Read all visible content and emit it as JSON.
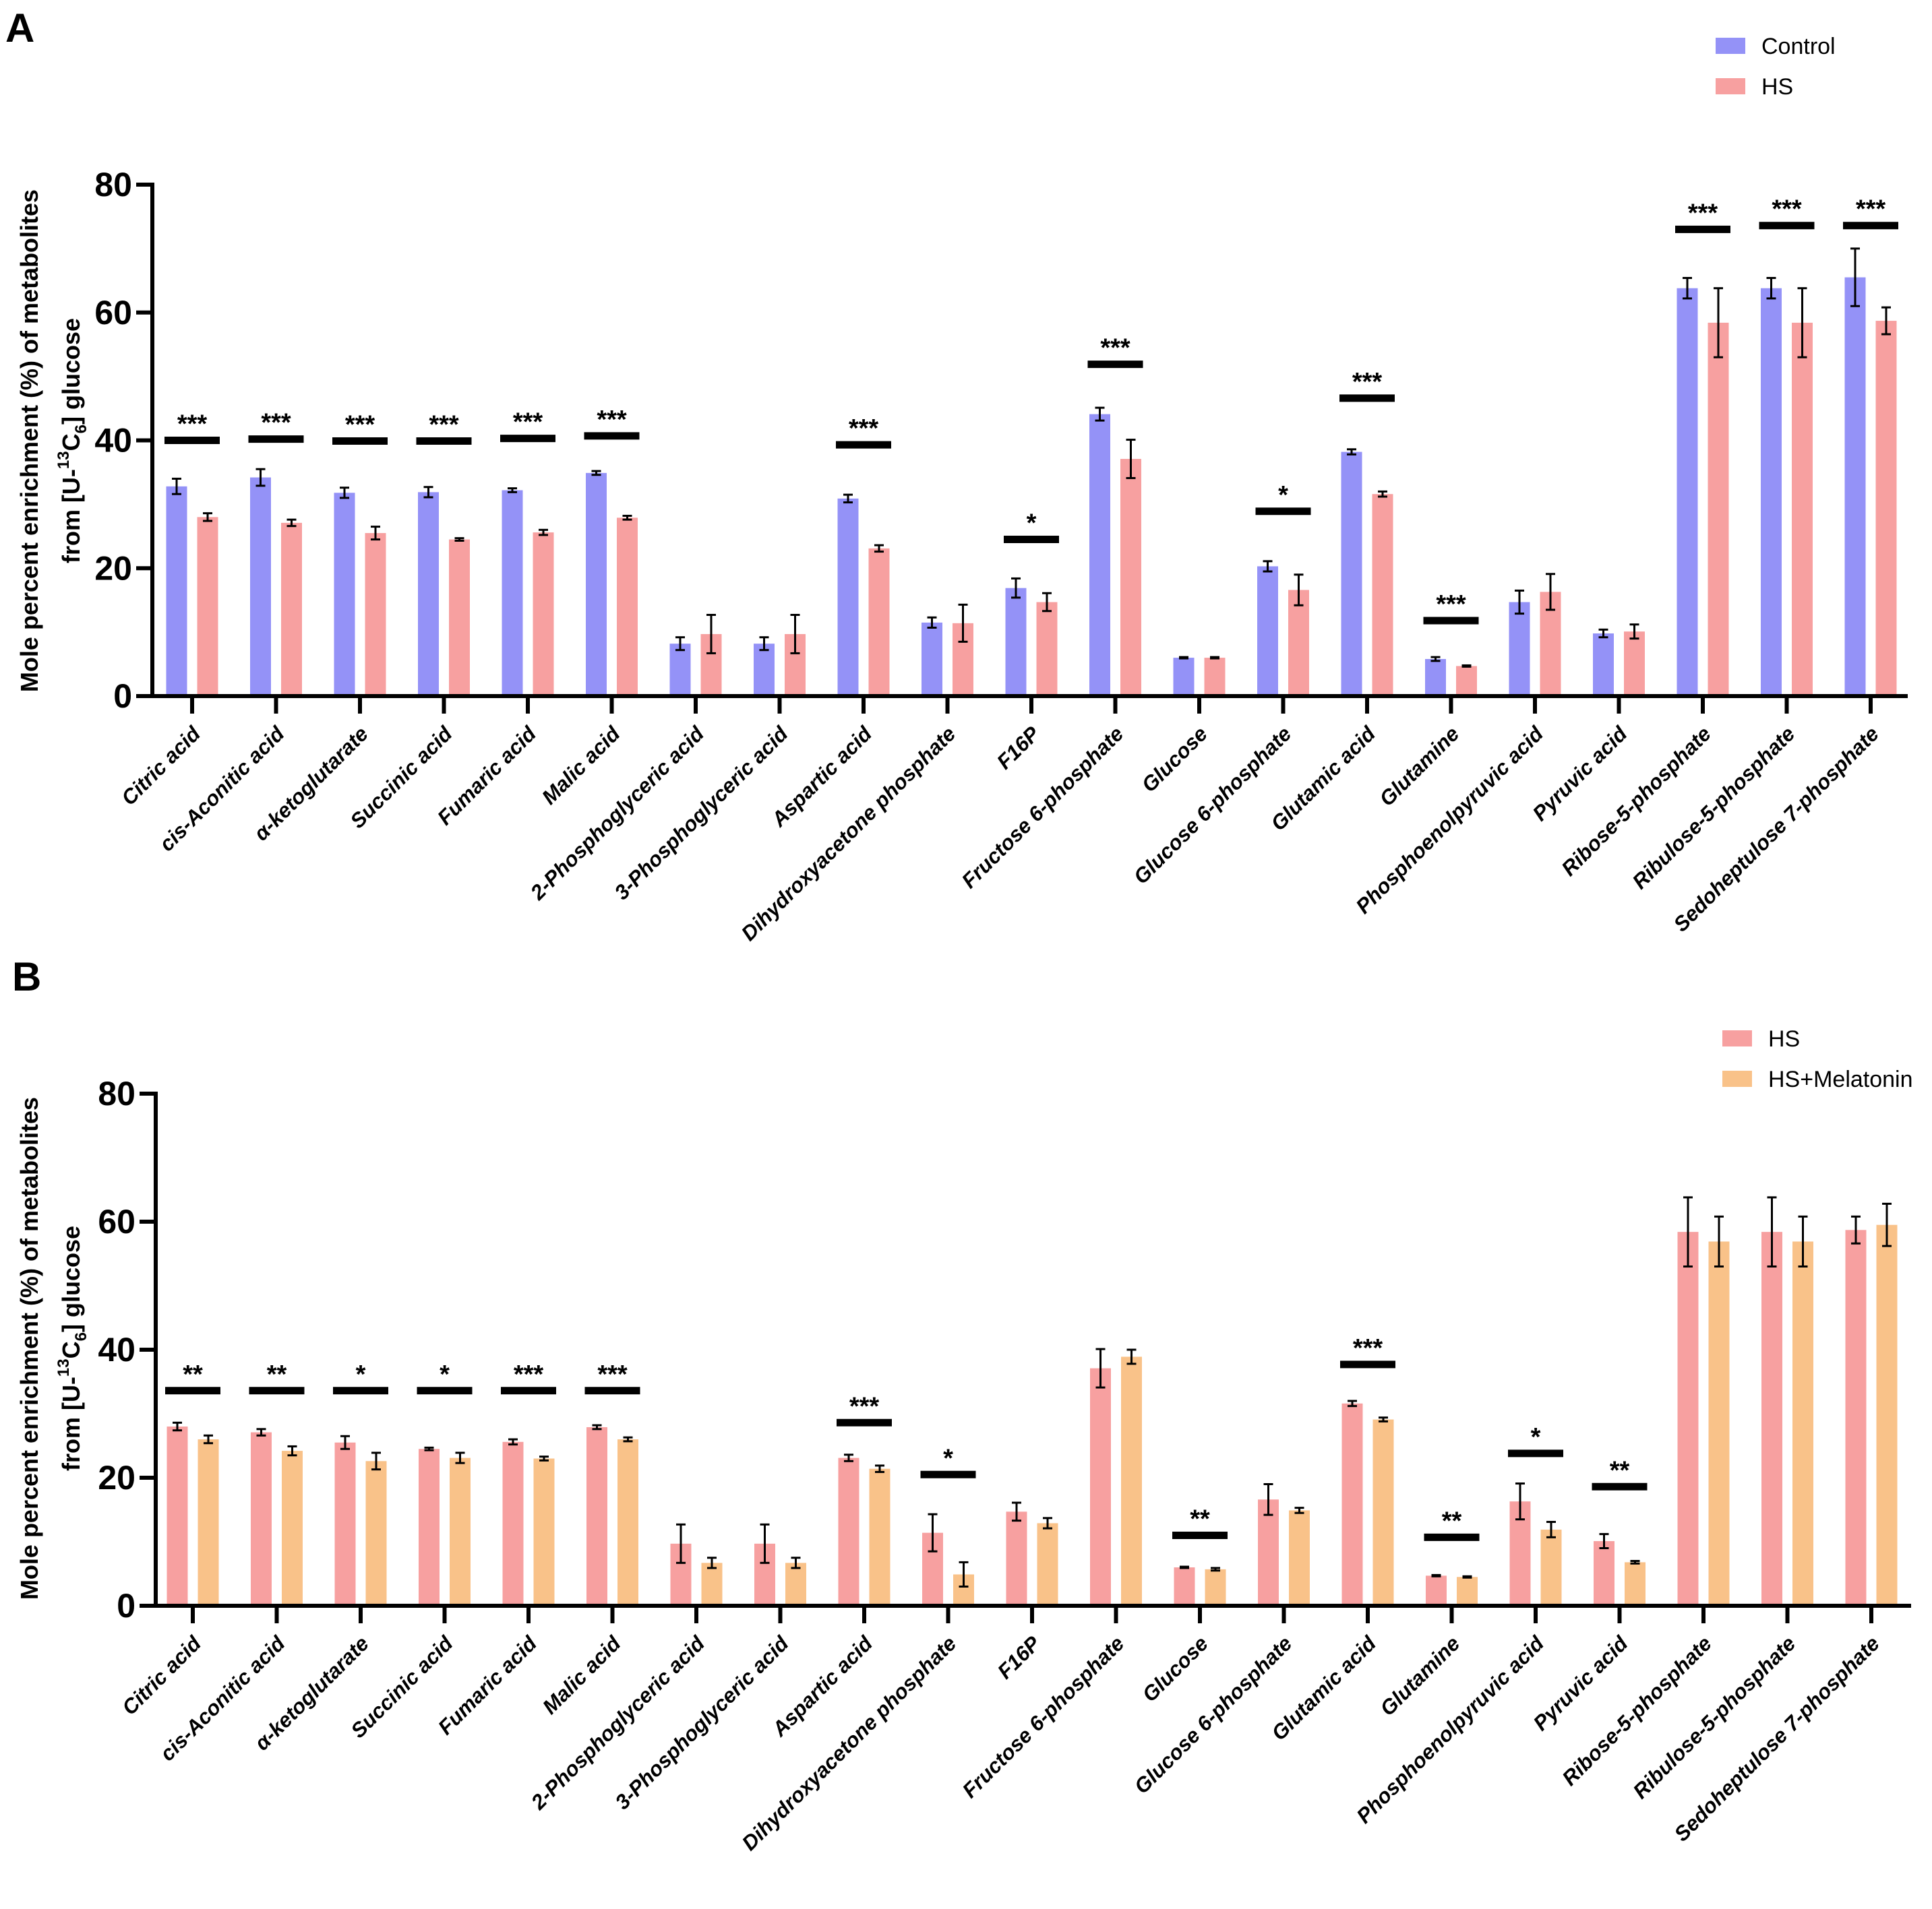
{
  "chart_data": [
    {
      "panel": "A",
      "type": "bar",
      "ylabel_line1": "Mole percent enrichment (%) of metabolites",
      "ylabel_line2_prefix": "from [U-",
      "ylabel_sup": "13",
      "ylabel_mid": "C",
      "ylabel_sub": "6",
      "ylabel_line2_suffix": "] glucose",
      "ylim": [
        0,
        80
      ],
      "yticks": [
        "0",
        "20",
        "40",
        "60",
        "80"
      ],
      "categories": [
        "Citric acid",
        "cis-Aconitic acid",
        "α-ketoglutarate",
        "Succinic acid",
        "Fumaric acid",
        "Malic acid",
        "2-Phosphoglyceric acid",
        "3-Phosphoglyceric acid",
        "Aspartic acid",
        "Dihydroxyacetone phosphate",
        "F16P",
        "Fructose 6-phosphate",
        "Glucose",
        "Glucose 6-phosphate",
        "Glutamic acid",
        "Glutamine",
        "Phosphoenolpyruvic acid",
        "Pyruvic acid",
        "Ribose-5-phosphate",
        "Ribulose-5-phosphate",
        "Sedoheptulose 7-phosphate"
      ],
      "series": [
        {
          "name": "Control",
          "color": "#9492f7",
          "values": [
            32.8,
            34.2,
            31.8,
            31.9,
            32.2,
            34.9,
            8.2,
            8.2,
            30.9,
            11.5,
            16.9,
            44.1,
            6.0,
            20.3,
            38.2,
            5.8,
            14.7,
            9.8,
            63.8,
            63.8,
            65.5
          ],
          "errors": [
            1.2,
            1.3,
            0.8,
            0.8,
            0.3,
            0.3,
            1.0,
            1.0,
            0.6,
            0.8,
            1.5,
            1.0,
            0.1,
            0.8,
            0.4,
            0.3,
            1.8,
            0.6,
            1.6,
            1.6,
            4.5
          ]
        },
        {
          "name": "HS",
          "color": "#f7a0a0",
          "values": [
            28.0,
            27.1,
            25.5,
            24.5,
            25.6,
            27.9,
            9.7,
            9.7,
            23.1,
            11.4,
            14.7,
            37.1,
            6.0,
            16.6,
            31.6,
            4.7,
            16.3,
            10.1,
            58.4,
            58.4,
            58.7
          ],
          "errors": [
            0.6,
            0.5,
            1.0,
            0.2,
            0.4,
            0.3,
            3.0,
            3.0,
            0.5,
            2.9,
            1.4,
            3.0,
            0.1,
            2.4,
            0.4,
            0.1,
            2.8,
            1.1,
            5.4,
            5.4,
            2.1
          ]
        }
      ],
      "significance": [
        {
          "index": 0,
          "label": "***",
          "y": 40.0
        },
        {
          "index": 1,
          "label": "***",
          "y": 40.2
        },
        {
          "index": 2,
          "label": "***",
          "y": 39.9
        },
        {
          "index": 3,
          "label": "***",
          "y": 39.9
        },
        {
          "index": 4,
          "label": "***",
          "y": 40.3
        },
        {
          "index": 5,
          "label": "***",
          "y": 40.7
        },
        {
          "index": 8,
          "label": "***",
          "y": 39.3
        },
        {
          "index": 10,
          "label": "*",
          "y": 24.5
        },
        {
          "index": 11,
          "label": "***",
          "y": 51.9
        },
        {
          "index": 13,
          "label": "*",
          "y": 28.9
        },
        {
          "index": 14,
          "label": "***",
          "y": 46.6
        },
        {
          "index": 15,
          "label": "***",
          "y": 11.8
        },
        {
          "index": 18,
          "label": "***",
          "y": 73.0
        },
        {
          "index": 19,
          "label": "***",
          "y": 73.6
        },
        {
          "index": 20,
          "label": "***",
          "y": 73.6
        }
      ],
      "legend": [
        "Control",
        "HS"
      ]
    },
    {
      "panel": "B",
      "type": "bar",
      "ylabel_line1": "Mole percent enrichment (%) of metabolites",
      "ylabel_line2_prefix": "from [U-",
      "ylabel_sup": "13",
      "ylabel_mid": "C",
      "ylabel_sub": "6",
      "ylabel_line2_suffix": "] glucose",
      "ylim": [
        0,
        80
      ],
      "yticks": [
        "0",
        "20",
        "40",
        "60",
        "80"
      ],
      "categories": [
        "Citric acid",
        "cis-Aconitic acid",
        "α-ketoglutarate",
        "Succinic acid",
        "Fumaric acid",
        "Malic acid",
        "2-Phosphoglyceric acid",
        "3-Phosphoglyceric acid",
        "Aspartic acid",
        "Dihydroxyacetone phosphate",
        "F16P",
        "Fructose 6-phosphate",
        "Glucose",
        "Glucose 6-phosphate",
        "Glutamic acid",
        "Glutamine",
        "Phosphoenolpyruvic acid",
        "Pyruvic acid",
        "Ribose-5-phosphate",
        "Ribulose-5-phosphate",
        "Sedoheptulose 7-phosphate"
      ],
      "series": [
        {
          "name": "HS",
          "color": "#f7a0a0",
          "values": [
            28.0,
            27.1,
            25.5,
            24.5,
            25.6,
            27.9,
            9.7,
            9.7,
            23.1,
            11.4,
            14.7,
            37.1,
            6.0,
            16.6,
            31.6,
            4.7,
            16.3,
            10.1,
            58.4,
            58.4,
            58.7
          ],
          "errors": [
            0.6,
            0.5,
            1.0,
            0.2,
            0.4,
            0.3,
            3.0,
            3.0,
            0.5,
            2.9,
            1.4,
            3.0,
            0.1,
            2.4,
            0.4,
            0.1,
            2.8,
            1.1,
            5.4,
            5.4,
            2.1
          ]
        },
        {
          "name": "HS+Melatonin",
          "color": "#f9c289",
          "values": [
            26.0,
            24.2,
            22.6,
            23.1,
            23.0,
            26.0,
            6.7,
            6.7,
            21.4,
            4.9,
            12.9,
            38.9,
            5.7,
            14.9,
            29.1,
            4.5,
            11.9,
            6.8,
            56.9,
            56.9,
            59.5
          ],
          "errors": [
            0.6,
            0.7,
            1.3,
            0.8,
            0.3,
            0.3,
            0.8,
            0.8,
            0.5,
            1.9,
            0.8,
            1.1,
            0.2,
            0.4,
            0.3,
            0.1,
            1.2,
            0.2,
            3.9,
            3.9,
            3.3
          ]
        }
      ],
      "significance": [
        {
          "index": 0,
          "label": "**",
          "y": 33.6
        },
        {
          "index": 1,
          "label": "**",
          "y": 33.6
        },
        {
          "index": 2,
          "label": "*",
          "y": 33.6
        },
        {
          "index": 3,
          "label": "*",
          "y": 33.6
        },
        {
          "index": 4,
          "label": "***",
          "y": 33.6
        },
        {
          "index": 5,
          "label": "***",
          "y": 33.6
        },
        {
          "index": 8,
          "label": "***",
          "y": 28.6
        },
        {
          "index": 9,
          "label": "*",
          "y": 20.5
        },
        {
          "index": 12,
          "label": "**",
          "y": 11.0
        },
        {
          "index": 14,
          "label": "***",
          "y": 37.7
        },
        {
          "index": 15,
          "label": "**",
          "y": 10.7
        },
        {
          "index": 16,
          "label": "*",
          "y": 23.8
        },
        {
          "index": 17,
          "label": "**",
          "y": 18.6
        }
      ],
      "legend": [
        "HS",
        "HS+Melatonin"
      ]
    }
  ]
}
